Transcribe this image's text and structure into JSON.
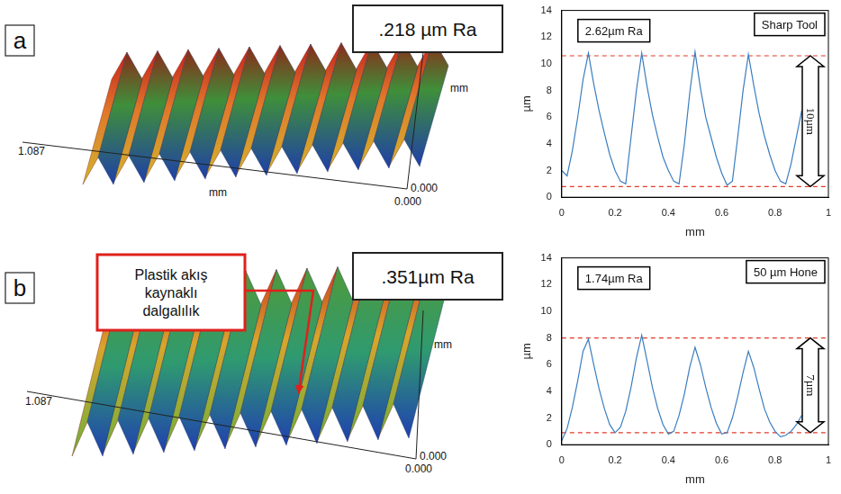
{
  "chart_data": [
    {
      "type": "line",
      "x_label": "mm",
      "y_label": "µm",
      "color": "#3b7dbf",
      "grid": false,
      "x": [
        0,
        0.02,
        0.04,
        0.06,
        0.08,
        0.1,
        0.12,
        0.14,
        0.16,
        0.18,
        0.2,
        0.22,
        0.24,
        0.26,
        0.28,
        0.3,
        0.32,
        0.34,
        0.36,
        0.38,
        0.4,
        0.42,
        0.44,
        0.46,
        0.48,
        0.5,
        0.52,
        0.54,
        0.56,
        0.58,
        0.6,
        0.62,
        0.64,
        0.66,
        0.68,
        0.7,
        0.72,
        0.74,
        0.76,
        0.78,
        0.8,
        0.82,
        0.84,
        0.86,
        0.88,
        0.9,
        0.92,
        0.94,
        0.96,
        0.98,
        1
      ],
      "values": [
        2.0,
        1.6,
        3.5,
        6.0,
        8.8,
        10.8,
        8.5,
        6.5,
        4.8,
        3.2,
        2.0,
        1.2,
        1.0,
        4.5,
        8.0,
        10.8,
        8.3,
        6.2,
        4.5,
        3.0,
        2.0,
        1.2,
        1.0,
        4.0,
        7.8,
        10.9,
        8.2,
        6.0,
        4.5,
        3.0,
        1.8,
        0.9,
        1.2,
        4.5,
        8.0,
        10.7,
        8.4,
        6.3,
        4.6,
        3.2,
        2.0,
        1.2,
        1.0,
        2.5,
        4.5,
        6.5,
        null,
        null,
        null,
        null,
        null
      ],
      "xlim": [
        0,
        1
      ],
      "xticks": [
        0,
        0.2,
        0.4,
        0.6,
        0.8,
        1
      ],
      "ylim": [
        0,
        14
      ],
      "yticks": [
        0,
        2,
        4,
        6,
        8,
        10,
        12,
        14
      ],
      "annotations": [
        "2.62µm Ra",
        "Sharp Tool"
      ],
      "span_label": "10µm",
      "reference_lines": [
        {
          "value": 10.6,
          "color": "#e03a2a",
          "line_style": "dashed"
        },
        {
          "value": 0.8,
          "color": "#e03a2a",
          "line_style": "dashed"
        }
      ]
    },
    {
      "type": "line",
      "x_label": "mm",
      "y_label": "µm",
      "color": "#3b7dbf",
      "grid": false,
      "x": [
        0,
        0.02,
        0.04,
        0.06,
        0.08,
        0.1,
        0.12,
        0.14,
        0.16,
        0.18,
        0.2,
        0.22,
        0.24,
        0.26,
        0.28,
        0.3,
        0.32,
        0.34,
        0.36,
        0.38,
        0.4,
        0.42,
        0.44,
        0.46,
        0.48,
        0.5,
        0.52,
        0.54,
        0.56,
        0.58,
        0.6,
        0.62,
        0.64,
        0.66,
        0.68,
        0.7,
        0.72,
        0.74,
        0.76,
        0.78,
        0.8,
        0.82,
        0.84,
        0.86,
        0.88,
        0.9,
        0.92,
        0.94,
        0.96,
        0.98,
        1
      ],
      "values": [
        0.3,
        1.2,
        2.8,
        4.8,
        7.0,
        7.9,
        6.0,
        4.2,
        2.7,
        1.5,
        0.9,
        1.3,
        2.5,
        4.3,
        6.5,
        8.2,
        6.3,
        4.3,
        2.7,
        1.5,
        0.8,
        1.0,
        2.2,
        3.8,
        5.8,
        7.3,
        6.0,
        4.3,
        2.8,
        1.6,
        0.8,
        0.9,
        2.0,
        3.6,
        5.4,
        7.0,
        5.8,
        4.2,
        2.7,
        1.7,
        1.0,
        0.6,
        0.7,
        1.0,
        1.5,
        2.2,
        null,
        null,
        null,
        null,
        null
      ],
      "xlim": [
        0,
        1
      ],
      "xticks": [
        0,
        0.2,
        0.4,
        0.6,
        0.8,
        1
      ],
      "ylim": [
        0,
        14
      ],
      "yticks": [
        0,
        2,
        4,
        6,
        8,
        10,
        12,
        14
      ],
      "annotations": [
        "1.74µm Ra",
        "50 µm Hone"
      ],
      "span_label": "7µm",
      "reference_lines": [
        {
          "value": 8.0,
          "color": "#e03a2a",
          "line_style": "dashed"
        },
        {
          "value": 0.9,
          "color": "#e03a2a",
          "line_style": "dashed"
        }
      ]
    }
  ],
  "surfaces": [
    {
      "letter": "a",
      "ra_label": ".218 µm Ra",
      "axis_texts": [
        "1.087",
        "mm",
        "mm",
        "0.000",
        "0.000"
      ]
    },
    {
      "letter": "b",
      "ra_label": ".351µm Ra",
      "axis_texts": [
        "1.087",
        "mm",
        "0.000",
        "0.000"
      ],
      "callout": "Plastik akış kaynaklı dalgalılık"
    }
  ]
}
